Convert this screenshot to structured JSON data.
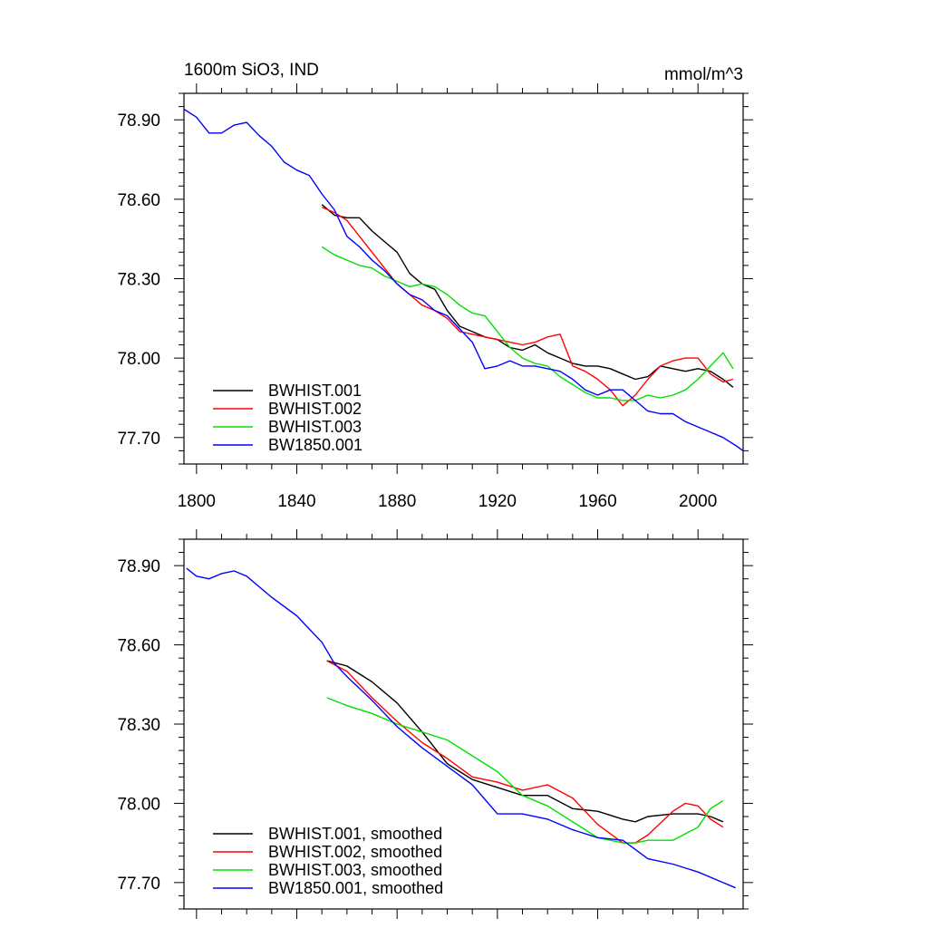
{
  "chart_data": [
    {
      "type": "line",
      "title": "1600m SiO3, IND",
      "units": "mmol/m^3",
      "xlim": [
        1795,
        2018
      ],
      "ylim": [
        77.6,
        79.0
      ],
      "xticks": [
        1800,
        1840,
        1880,
        1920,
        1960,
        2000
      ],
      "xtick_labels": [
        "1800",
        "1840",
        "1880",
        "1920",
        "1960",
        "2000"
      ],
      "yticks": [
        77.7,
        78.0,
        78.3,
        78.6,
        78.9
      ],
      "ytick_labels": [
        "77.70",
        "78.00",
        "78.30",
        "78.60",
        "78.90"
      ],
      "legend_position": "bottom-left",
      "series": [
        {
          "name": "BWHIST.001",
          "color": "#000000",
          "x": [
            1850,
            1855,
            1860,
            1865,
            1870,
            1875,
            1880,
            1885,
            1890,
            1895,
            1900,
            1905,
            1910,
            1915,
            1920,
            1925,
            1930,
            1935,
            1940,
            1945,
            1950,
            1955,
            1960,
            1965,
            1970,
            1975,
            1980,
            1985,
            1990,
            1995,
            2000,
            2005,
            2010,
            2014
          ],
          "y": [
            78.58,
            78.54,
            78.53,
            78.53,
            78.48,
            78.44,
            78.4,
            78.32,
            78.28,
            78.26,
            78.18,
            78.12,
            78.1,
            78.08,
            78.07,
            78.04,
            78.03,
            78.05,
            78.02,
            78.0,
            77.98,
            77.97,
            77.97,
            77.96,
            77.94,
            77.92,
            77.93,
            77.97,
            77.96,
            77.95,
            77.96,
            77.95,
            77.92,
            77.89
          ]
        },
        {
          "name": "BWHIST.002",
          "color": "#ff0000",
          "x": [
            1850,
            1855,
            1860,
            1865,
            1870,
            1875,
            1880,
            1885,
            1890,
            1895,
            1900,
            1905,
            1910,
            1915,
            1920,
            1925,
            1930,
            1935,
            1940,
            1945,
            1950,
            1955,
            1960,
            1965,
            1970,
            1975,
            1980,
            1985,
            1990,
            1995,
            2000,
            2005,
            2010,
            2014
          ],
          "y": [
            78.57,
            78.55,
            78.52,
            78.46,
            78.4,
            78.34,
            78.28,
            78.24,
            78.2,
            78.18,
            78.15,
            78.1,
            78.09,
            78.08,
            78.07,
            78.06,
            78.05,
            78.06,
            78.08,
            78.09,
            77.97,
            77.95,
            77.92,
            77.88,
            77.82,
            77.86,
            77.92,
            77.97,
            77.99,
            78.0,
            78.0,
            77.94,
            77.91,
            77.92
          ]
        },
        {
          "name": "BWHIST.003",
          "color": "#00e000",
          "x": [
            1850,
            1855,
            1860,
            1865,
            1870,
            1875,
            1880,
            1885,
            1890,
            1895,
            1900,
            1905,
            1910,
            1915,
            1920,
            1925,
            1930,
            1935,
            1940,
            1945,
            1950,
            1955,
            1960,
            1965,
            1970,
            1975,
            1980,
            1985,
            1990,
            1995,
            2000,
            2005,
            2010,
            2014
          ],
          "y": [
            78.42,
            78.39,
            78.37,
            78.35,
            78.34,
            78.31,
            78.29,
            78.27,
            78.28,
            78.27,
            78.24,
            78.2,
            78.17,
            78.16,
            78.1,
            78.04,
            78.0,
            77.98,
            77.97,
            77.93,
            77.9,
            77.87,
            77.85,
            77.85,
            77.84,
            77.84,
            77.86,
            77.85,
            77.86,
            77.88,
            77.92,
            77.97,
            78.02,
            77.96
          ]
        },
        {
          "name": "BW1850.001",
          "color": "#0000ff",
          "x": [
            1795,
            1800,
            1805,
            1810,
            1815,
            1820,
            1825,
            1830,
            1835,
            1840,
            1845,
            1850,
            1855,
            1860,
            1865,
            1870,
            1875,
            1880,
            1885,
            1890,
            1895,
            1900,
            1905,
            1910,
            1915,
            1920,
            1925,
            1930,
            1935,
            1940,
            1945,
            1950,
            1955,
            1960,
            1965,
            1970,
            1975,
            1980,
            1985,
            1990,
            1995,
            2000,
            2005,
            2010,
            2015,
            2018
          ],
          "y": [
            78.94,
            78.91,
            78.85,
            78.85,
            78.88,
            78.89,
            78.84,
            78.8,
            78.74,
            78.71,
            78.69,
            78.62,
            78.56,
            78.46,
            78.42,
            78.37,
            78.33,
            78.28,
            78.24,
            78.22,
            78.18,
            78.16,
            78.11,
            78.06,
            77.96,
            77.97,
            77.99,
            77.97,
            77.97,
            77.96,
            77.95,
            77.92,
            77.88,
            77.86,
            77.88,
            77.88,
            77.84,
            77.8,
            77.79,
            77.79,
            77.76,
            77.74,
            77.72,
            77.7,
            77.67,
            77.65
          ]
        }
      ]
    },
    {
      "type": "line",
      "xlim": [
        1795,
        2018
      ],
      "ylim": [
        77.6,
        79.0
      ],
      "xticks": [
        1800,
        1840,
        1880,
        1920,
        1960,
        2000
      ],
      "yticks": [
        77.7,
        78.0,
        78.3,
        78.6,
        78.9
      ],
      "ytick_labels": [
        "77.70",
        "78.00",
        "78.30",
        "78.60",
        "78.90"
      ],
      "legend_position": "bottom-left",
      "series": [
        {
          "name": "BWHIST.001, smoothed",
          "color": "#000000",
          "x": [
            1852,
            1860,
            1870,
            1880,
            1890,
            1900,
            1910,
            1920,
            1930,
            1940,
            1950,
            1960,
            1970,
            1975,
            1980,
            1990,
            2000,
            2005,
            2010
          ],
          "y": [
            78.54,
            78.52,
            78.46,
            78.38,
            78.27,
            78.15,
            78.09,
            78.06,
            78.03,
            78.03,
            77.98,
            77.97,
            77.94,
            77.93,
            77.95,
            77.96,
            77.96,
            77.95,
            77.93
          ]
        },
        {
          "name": "BWHIST.002, smoothed",
          "color": "#ff0000",
          "x": [
            1852,
            1860,
            1870,
            1880,
            1890,
            1900,
            1910,
            1920,
            1930,
            1940,
            1950,
            1960,
            1970,
            1975,
            1980,
            1990,
            1995,
            2000,
            2005,
            2010
          ],
          "y": [
            78.54,
            78.5,
            78.4,
            78.31,
            78.23,
            78.17,
            78.1,
            78.08,
            78.05,
            78.07,
            78.02,
            77.92,
            77.85,
            77.85,
            77.88,
            77.97,
            78.0,
            77.99,
            77.94,
            77.91
          ]
        },
        {
          "name": "BWHIST.003, smoothed",
          "color": "#00e000",
          "x": [
            1852,
            1860,
            1870,
            1880,
            1890,
            1900,
            1910,
            1920,
            1930,
            1940,
            1950,
            1960,
            1970,
            1975,
            1980,
            1990,
            2000,
            2005,
            2010
          ],
          "y": [
            78.4,
            78.37,
            78.34,
            78.3,
            78.27,
            78.24,
            78.18,
            78.12,
            78.03,
            77.99,
            77.93,
            77.87,
            77.85,
            77.85,
            77.86,
            77.86,
            77.91,
            77.98,
            78.01
          ]
        },
        {
          "name": "BW1850.001, smoothed",
          "color": "#0000ff",
          "x": [
            1796,
            1800,
            1805,
            1810,
            1815,
            1820,
            1830,
            1840,
            1845,
            1850,
            1855,
            1860,
            1870,
            1880,
            1890,
            1900,
            1910,
            1920,
            1930,
            1940,
            1950,
            1960,
            1970,
            1980,
            1990,
            2000,
            2010,
            2015
          ],
          "y": [
            78.89,
            78.86,
            78.85,
            78.87,
            78.88,
            78.86,
            78.78,
            78.71,
            78.66,
            78.61,
            78.53,
            78.48,
            78.39,
            78.29,
            78.21,
            78.14,
            78.07,
            77.96,
            77.96,
            77.94,
            77.9,
            77.87,
            77.86,
            77.79,
            77.77,
            77.74,
            77.7,
            77.68
          ]
        }
      ]
    }
  ]
}
